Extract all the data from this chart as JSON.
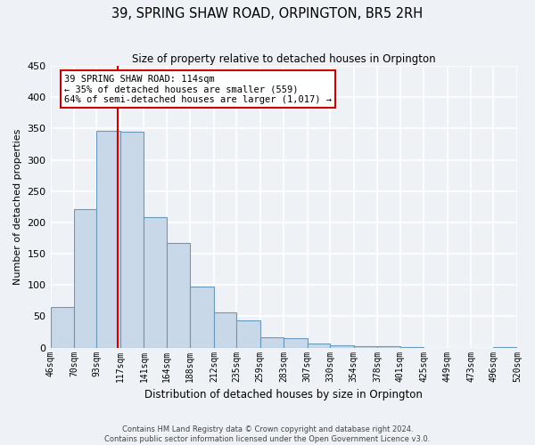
{
  "title": "39, SPRING SHAW ROAD, ORPINGTON, BR5 2RH",
  "subtitle": "Size of property relative to detached houses in Orpington",
  "xlabel": "Distribution of detached houses by size in Orpington",
  "ylabel": "Number of detached properties",
  "bin_labels": [
    "46sqm",
    "70sqm",
    "93sqm",
    "117sqm",
    "141sqm",
    "164sqm",
    "188sqm",
    "212sqm",
    "235sqm",
    "259sqm",
    "283sqm",
    "307sqm",
    "330sqm",
    "354sqm",
    "378sqm",
    "401sqm",
    "425sqm",
    "449sqm",
    "473sqm",
    "496sqm",
    "520sqm"
  ],
  "bar_values": [
    65,
    222,
    347,
    345,
    208,
    167,
    98,
    57,
    43,
    16,
    15,
    7,
    4,
    3,
    2,
    1,
    0,
    0,
    0,
    1
  ],
  "bar_color": "#c8d8e8",
  "bar_edge_color": "#6699bb",
  "property_line_x": 114,
  "bin_edges": [
    46,
    70,
    93,
    117,
    141,
    164,
    188,
    212,
    235,
    259,
    283,
    307,
    330,
    354,
    378,
    401,
    425,
    449,
    473,
    496,
    520
  ],
  "ylim": [
    0,
    450
  ],
  "yticks": [
    0,
    50,
    100,
    150,
    200,
    250,
    300,
    350,
    400,
    450
  ],
  "annotation_line1": "39 SPRING SHAW ROAD: 114sqm",
  "annotation_line2": "← 35% of detached houses are smaller (559)",
  "annotation_line3": "64% of semi-detached houses are larger (1,017) →",
  "footer_line1": "Contains HM Land Registry data © Crown copyright and database right 2024.",
  "footer_line2": "Contains public sector information licensed under the Open Government Licence v3.0.",
  "background_color": "#eef2f7",
  "grid_color": "#ffffff",
  "line_color": "#cc0000"
}
